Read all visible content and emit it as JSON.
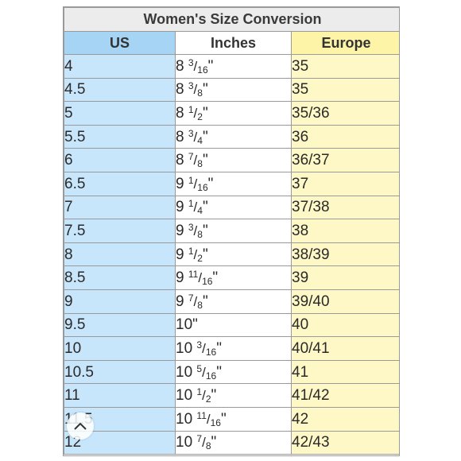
{
  "title": "Women's Size Conversion",
  "columns": [
    "US",
    "Inches",
    "Europe"
  ],
  "rows": [
    {
      "us": "4",
      "in_whole": "8",
      "in_num": "3",
      "in_den": "16",
      "eu": "35"
    },
    {
      "us": "4.5",
      "in_whole": "8",
      "in_num": "3",
      "in_den": "8",
      "eu": "35"
    },
    {
      "us": "5",
      "in_whole": "8",
      "in_num": "1",
      "in_den": "2",
      "eu": "35/36"
    },
    {
      "us": "5.5",
      "in_whole": "8",
      "in_num": "3",
      "in_den": "4",
      "eu": "36"
    },
    {
      "us": "6",
      "in_whole": "8",
      "in_num": "7",
      "in_den": "8",
      "eu": "36/37"
    },
    {
      "us": "6.5",
      "in_whole": "9",
      "in_num": "1",
      "in_den": "16",
      "eu": "37"
    },
    {
      "us": "7",
      "in_whole": "9",
      "in_num": "1",
      "in_den": "4",
      "eu": "37/38"
    },
    {
      "us": "7.5",
      "in_whole": "9",
      "in_num": "3",
      "in_den": "8",
      "eu": "38"
    },
    {
      "us": "8",
      "in_whole": "9",
      "in_num": "1",
      "in_den": "2",
      "eu": "38/39"
    },
    {
      "us": "8.5",
      "in_whole": "9",
      "in_num": "11",
      "in_den": "16",
      "eu": "39"
    },
    {
      "us": "9",
      "in_whole": "9",
      "in_num": "7",
      "in_den": "8",
      "eu": "39/40"
    },
    {
      "us": "9.5",
      "in_whole": "10",
      "in_num": "",
      "in_den": "",
      "eu": "40"
    },
    {
      "us": "10",
      "in_whole": "10",
      "in_num": "3",
      "in_den": "16",
      "eu": "40/41"
    },
    {
      "us": "10.5",
      "in_whole": "10",
      "in_num": "5",
      "in_den": "16",
      "eu": "41"
    },
    {
      "us": "11",
      "in_whole": "10",
      "in_num": "1",
      "in_den": "2",
      "eu": "41/42"
    },
    {
      "us": "11.5",
      "in_whole": "10",
      "in_num": "11",
      "in_den": "16",
      "eu": "42"
    },
    {
      "us": "12",
      "in_whole": "10",
      "in_num": "7",
      "in_den": "8",
      "eu": "42/43"
    }
  ],
  "inch_mark": "\"",
  "scroll_up_icon": "chevron-up-icon",
  "colors": {
    "us_header": "#a6d4f4",
    "us_cell": "#c8e6fb",
    "europe_header": "#fdf4a8",
    "europe_cell": "#fdf8c6",
    "title_bg": "#ececec"
  }
}
